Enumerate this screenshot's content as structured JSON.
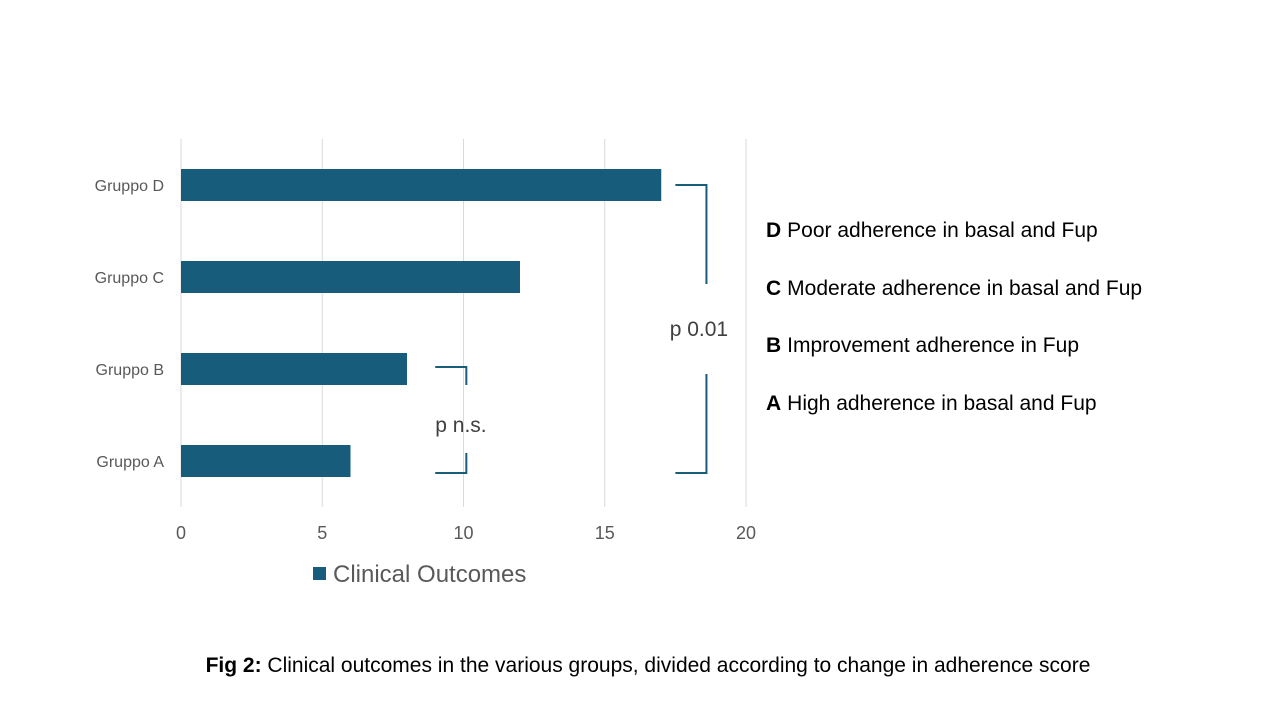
{
  "chart_data": {
    "type": "bar",
    "orientation": "horizontal",
    "categories": [
      "Gruppo A",
      "Gruppo B",
      "Gruppo C",
      "Gruppo D"
    ],
    "series": [
      {
        "name": "Clinical Outcomes",
        "values": [
          6,
          8,
          12,
          17
        ]
      }
    ],
    "xlim": [
      0,
      20
    ],
    "xticks": [
      0,
      5,
      10,
      15,
      20
    ],
    "xtick_labels": [
      "0",
      "5",
      "10",
      "15",
      "20"
    ],
    "grid": true,
    "legend_position": "bottom",
    "colors": {
      "bar": "#185c7c",
      "bracket": "#185c7c"
    },
    "annotations": [
      {
        "text": "p n.s.",
        "between": [
          "Gruppo A",
          "Gruppo B"
        ]
      },
      {
        "text": "p 0.01",
        "between": [
          "Gruppo A",
          "Gruppo D"
        ]
      }
    ]
  },
  "group_legend": [
    {
      "letter": "D",
      "text": "Poor adherence in basal and Fup"
    },
    {
      "letter": "C",
      "text": "Moderate adherence in basal and Fup"
    },
    {
      "letter": "B",
      "text": "Improvement adherence in Fup"
    },
    {
      "letter": "A",
      "text": "High adherence in basal and Fup"
    }
  ],
  "caption": {
    "label": "Fig 2:",
    "text": " Clinical outcomes in the various groups, divided according to change in adherence score"
  }
}
